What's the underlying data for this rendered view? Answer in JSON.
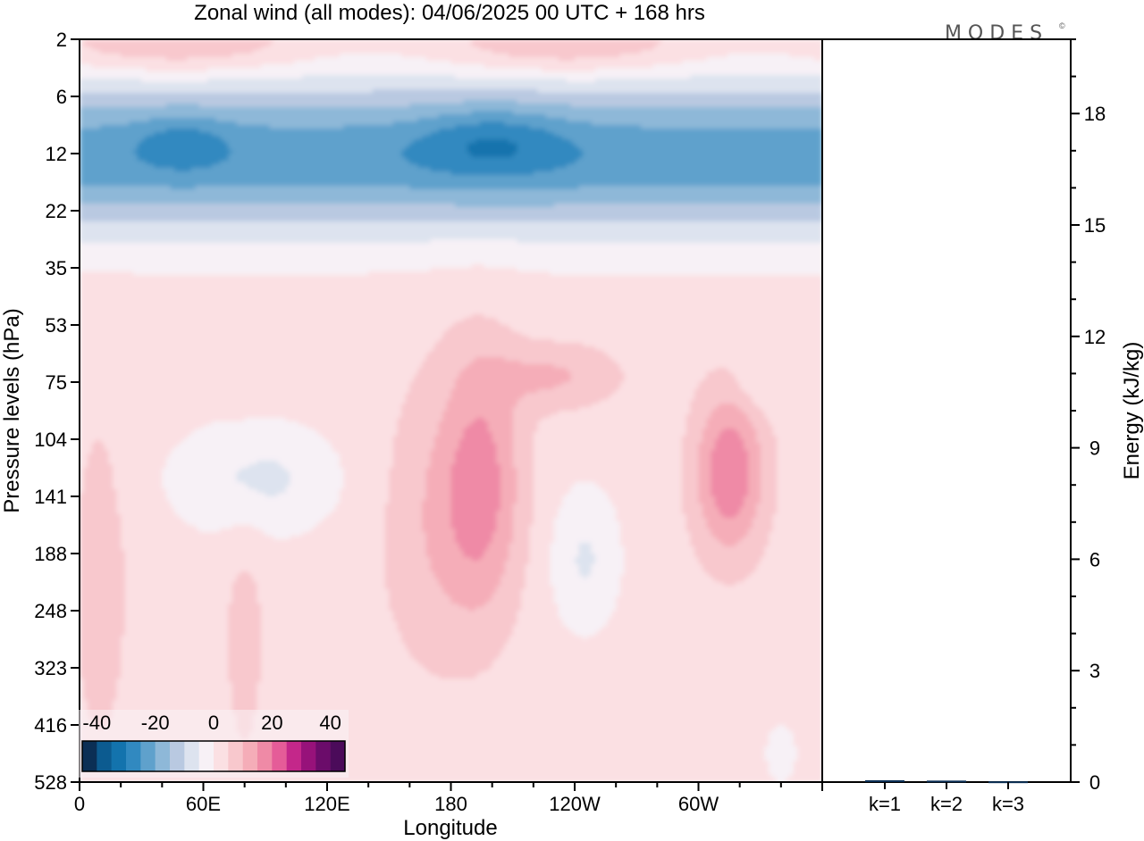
{
  "title": "Zonal wind (all modes):  04/06/2025  00 UTC  + 168 hrs",
  "brand": "MODES",
  "brand_mark": "©",
  "chart_data": [
    {
      "type": "heatmap",
      "xlabel": "Longitude",
      "ylabel": "Pressure levels (hPa)",
      "x_ticks": [
        {
          "label": "0",
          "lon": 0
        },
        {
          "label": "60E",
          "lon": 60
        },
        {
          "label": "120E",
          "lon": 120
        },
        {
          "label": "180",
          "lon": 180
        },
        {
          "label": "120W",
          "lon": 240
        },
        {
          "label": "60W",
          "lon": 300
        }
      ],
      "xlim": [
        0,
        360
      ],
      "y_levels": [
        "2",
        "6",
        "12",
        "22",
        "35",
        "53",
        "75",
        "104",
        "141",
        "188",
        "248",
        "323",
        "416",
        "528"
      ],
      "y_scale": "level index (log-pressure)",
      "colorbar": {
        "labels": [
          "-40",
          "-20",
          "0",
          "20",
          "40"
        ],
        "range": [
          -45,
          45
        ],
        "step": 5,
        "colors": [
          "#0b2f55",
          "#0c5b90",
          "#1373ad",
          "#3189c0",
          "#5fa1cc",
          "#8eb8d8",
          "#b9c9e1",
          "#dde3ef",
          "#f7f1f6",
          "#fbe0e3",
          "#f8c8cd",
          "#f5adb8",
          "#ef8aa6",
          "#e55c98",
          "#c4278a",
          "#97127a",
          "#6b0c6a",
          "#4b0b5a"
        ],
        "placement": "bottom-left"
      },
      "description_fields": {
        "dominant_pattern": "strong easterlies 6-35 hPa, westerly patches 75-248 hPa, weak westerlies near 2 hPa"
      }
    },
    {
      "type": "bar",
      "ylabel": "Energy (kJ/kg)",
      "y_ticks": [
        "0",
        "3",
        "6",
        "9",
        "12",
        "15",
        "18"
      ],
      "ylim": [
        0,
        20
      ],
      "categories": [
        "k=1",
        "k=2",
        "k=3"
      ],
      "values": [
        0.05,
        0.04,
        0.02
      ]
    }
  ]
}
